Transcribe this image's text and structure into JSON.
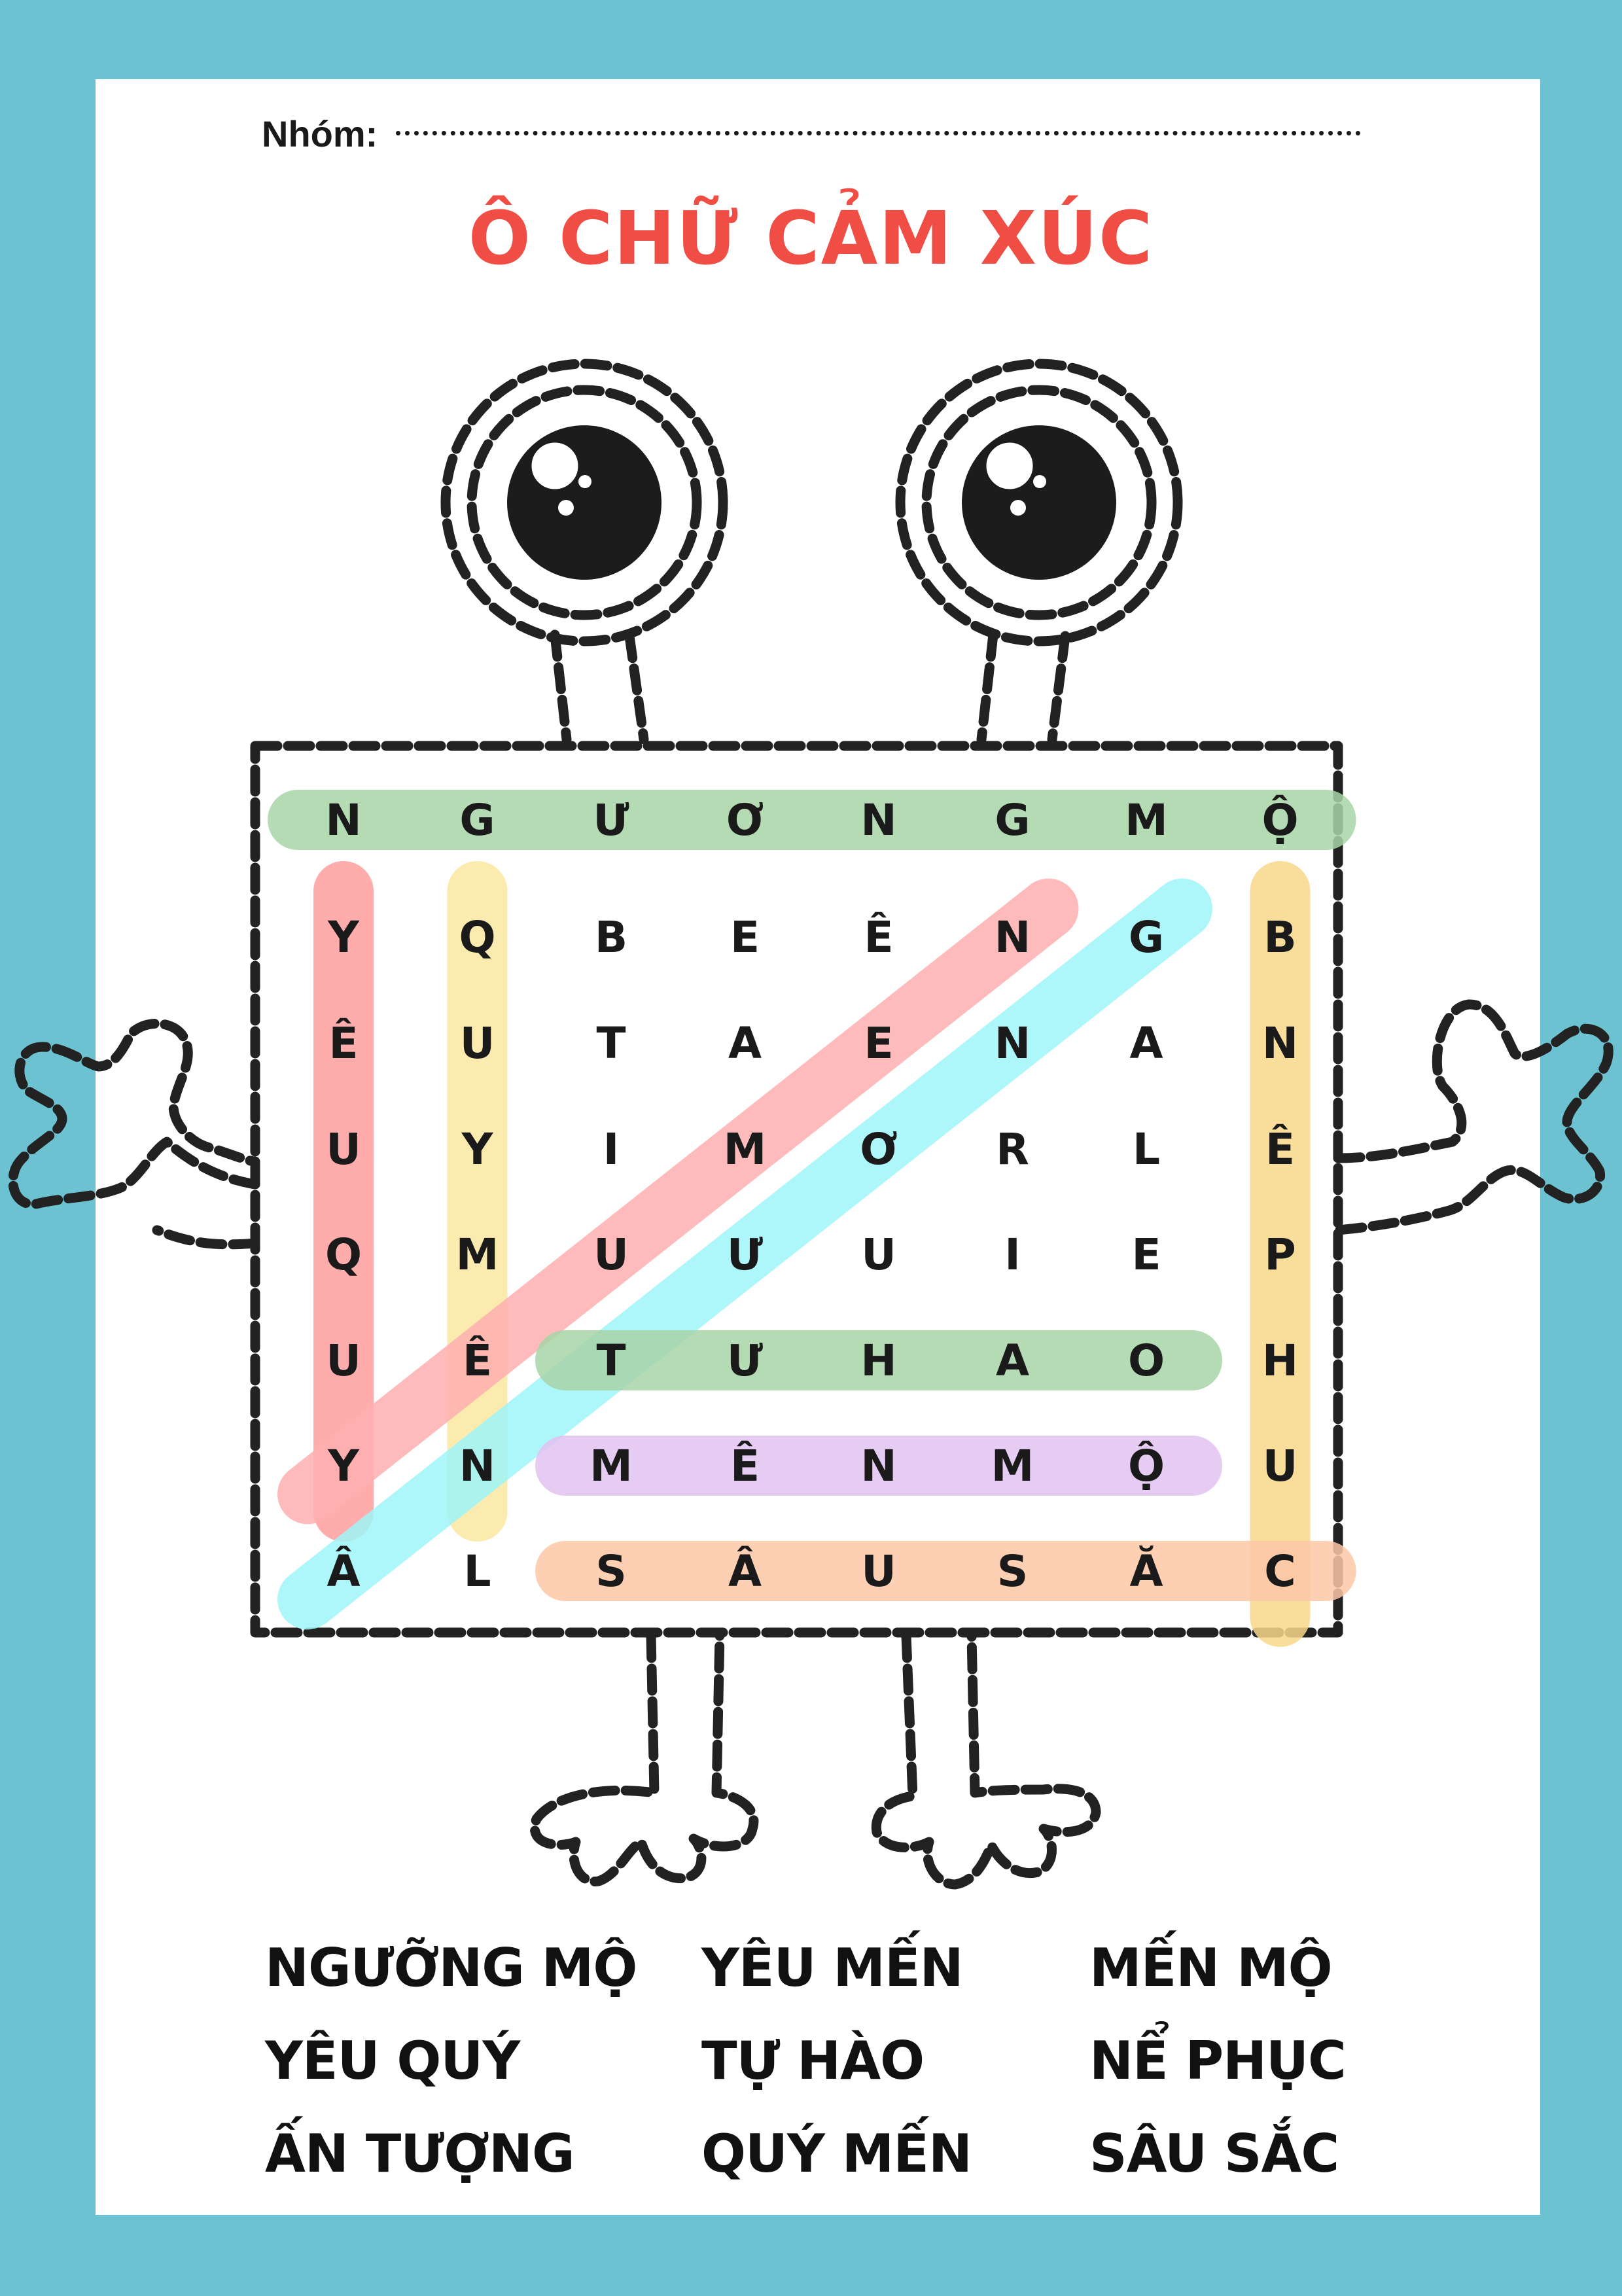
{
  "header": {
    "group_label": "Nhóm:",
    "title": "Ô CHỮ CẢM XÚC"
  },
  "grid": [
    [
      "N",
      "G",
      "Ư",
      "Ơ",
      "N",
      "G",
      "M",
      "Ộ"
    ],
    [
      "Y",
      "Q",
      "B",
      "E",
      "Ê",
      "N",
      "G",
      "B"
    ],
    [
      "Ê",
      "U",
      "T",
      "A",
      "E",
      "N",
      "A",
      "N"
    ],
    [
      "U",
      "Y",
      "I",
      "M",
      "Ơ",
      "R",
      "L",
      "Ê"
    ],
    [
      "Q",
      "M",
      "U",
      "Ư",
      "U",
      "I",
      "E",
      "P"
    ],
    [
      "U",
      "Ê",
      "T",
      "Ư",
      "H",
      "A",
      "O",
      "H"
    ],
    [
      "Y",
      "N",
      "M",
      "Ê",
      "N",
      "M",
      "Ộ",
      "U"
    ],
    [
      "Â",
      "L",
      "S",
      "Â",
      "U",
      "S",
      "Ă",
      "C"
    ]
  ],
  "highlights": [
    {
      "word": "NGUONGMO",
      "from": [
        0,
        0
      ],
      "to": [
        0,
        7
      ],
      "color": "#a8d5a8"
    },
    {
      "word": "YEUQUY",
      "from": [
        1,
        0
      ],
      "to": [
        6,
        0
      ],
      "color": "#ff9e9e"
    },
    {
      "word": "QUYMEN",
      "from": [
        1,
        1
      ],
      "to": [
        6,
        1
      ],
      "color": "#fce8a0"
    },
    {
      "word": "ANTUONG",
      "from": [
        6,
        0
      ],
      "to": [
        1,
        5
      ],
      "color": "#ffb0b0"
    },
    {
      "word": "ANTUONG2",
      "from": [
        7,
        0
      ],
      "to": [
        1,
        6
      ],
      "color": "#9ff5f8"
    },
    {
      "word": "NEPHUC",
      "from": [
        1,
        7
      ],
      "to": [
        7,
        7
      ],
      "color": "#f9d88a"
    },
    {
      "word": "TUHAO",
      "from": [
        5,
        2
      ],
      "to": [
        5,
        6
      ],
      "color": "#a8d5a8"
    },
    {
      "word": "MENMO",
      "from": [
        6,
        2
      ],
      "to": [
        6,
        6
      ],
      "color": "#e2c2f2"
    },
    {
      "word": "SAUSAC",
      "from": [
        7,
        2
      ],
      "to": [
        7,
        7
      ],
      "color": "#fdc8a8"
    }
  ],
  "word_list": {
    "col1": [
      "NGƯỠNG MỘ",
      "YÊU QUÝ",
      "ẤN TƯỢNG"
    ],
    "col2": [
      "YÊU MẾN",
      "TỰ HÀO",
      "QUÝ MẾN"
    ],
    "col3": [
      "MẾN MỘ",
      "NỂ PHỤC",
      "SÂU SẮC"
    ]
  },
  "colors": {
    "frame": "#6cc2d1",
    "title": "#f04e45",
    "ink": "#1a1a1a"
  }
}
